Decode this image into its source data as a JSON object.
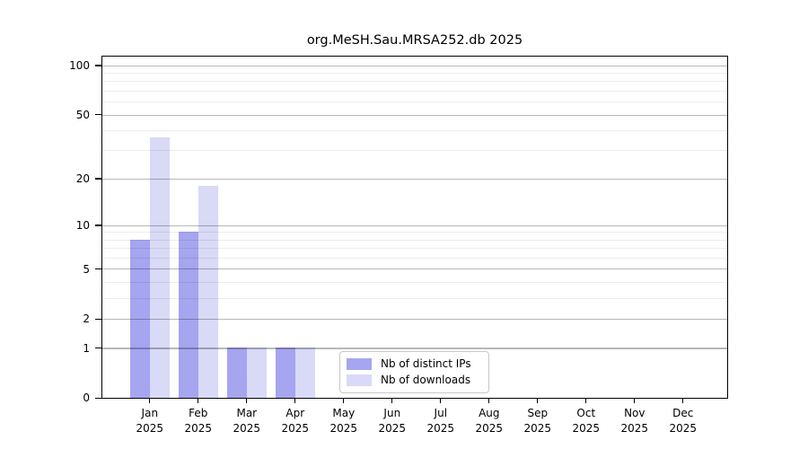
{
  "chart_data": {
    "type": "bar",
    "title": "org.MeSH.Sau.MRSA252.db 2025",
    "categories": [
      "Jan",
      "Feb",
      "Mar",
      "Apr",
      "May",
      "Jun",
      "Jul",
      "Aug",
      "Sep",
      "Oct",
      "Nov",
      "Dec"
    ],
    "year_label": "2025",
    "series": [
      {
        "key": "distinct-ips",
        "name": "Nb of distinct IPs",
        "color": "#a5a5f0",
        "values": [
          8,
          9,
          1,
          1,
          0,
          0,
          0,
          0,
          0,
          0,
          0,
          0
        ]
      },
      {
        "key": "downloads",
        "name": "Nb of downloads",
        "color": "#d9d9f8",
        "values": [
          36,
          18,
          1,
          1,
          0,
          0,
          0,
          0,
          0,
          0,
          0,
          0
        ]
      }
    ],
    "yscale": "log1p",
    "ylim": [
      0,
      113
    ],
    "yticks": [
      0,
      1,
      2,
      5,
      10,
      20,
      50,
      100
    ],
    "minor_yticks": [
      3,
      4,
      6,
      7,
      8,
      9,
      30,
      40,
      60,
      70,
      80,
      90
    ],
    "grid": true,
    "legend_position": "lower center",
    "colors": {
      "axis": "#000000",
      "text": "#000000",
      "major_grid": "rgba(0,0,0,0.28)",
      "minor_grid": "rgba(0,0,0,0.075)",
      "legend_border": "#c8c8c8"
    }
  }
}
